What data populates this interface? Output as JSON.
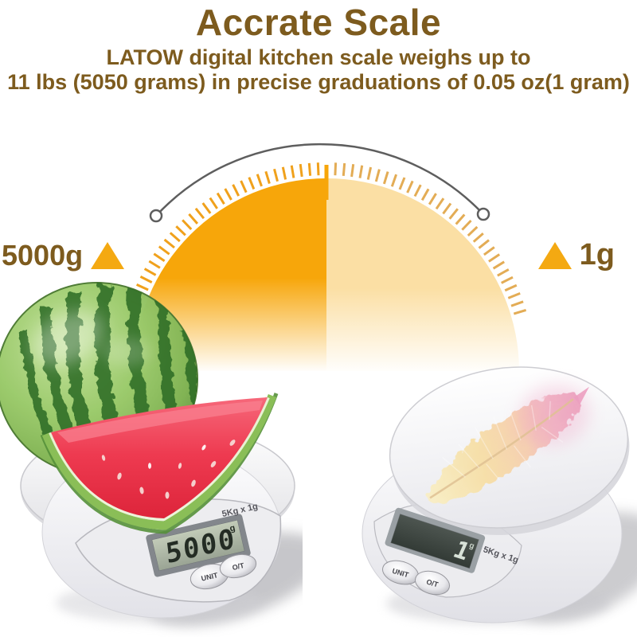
{
  "header": {
    "title": "Accrate Scale",
    "subtitle_line1": "LATOW digital kitchen scale weighs up to",
    "subtitle_line2": "11 lbs (5050 grams) in precise graduations of 0.05 oz(1 gram)"
  },
  "gauge": {
    "left_label": "5000g",
    "right_label": "1g"
  },
  "left_scale": {
    "display_value": "5000",
    "display_unit": "g",
    "capacity_marking": "5Kg x 1g",
    "unit_button": "UNIT",
    "tare_button": "O/T"
  },
  "right_scale": {
    "display_value": "1",
    "display_unit": "g",
    "capacity_marking": "5Kg x 1g",
    "unit_button": "UNIT",
    "tare_button": "O/T"
  },
  "colors": {
    "text_brown": "#7D5B1E",
    "gauge_left_half": "#F7A60A",
    "gauge_right_half": "#FBDFA4",
    "tick_left": "#F0A11C",
    "tick_right": "#E3AC55",
    "triangle_orange": "#F4A912",
    "arc_gray": "#5E5E5E",
    "watermelon_red": "#EE3A50",
    "rind_green": "#8ABE57"
  }
}
